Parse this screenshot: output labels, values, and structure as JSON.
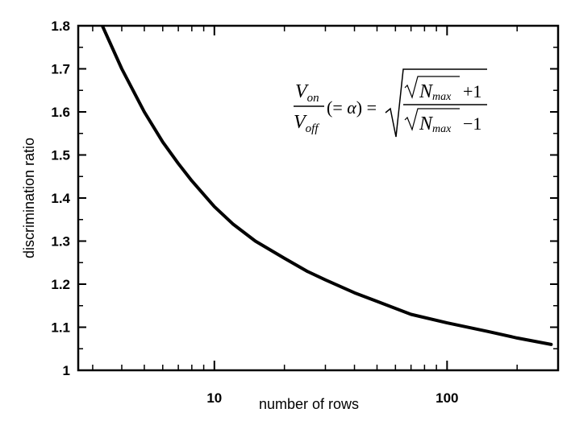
{
  "chart_data": {
    "type": "line",
    "title": "",
    "xlabel": "number of rows",
    "ylabel": "discrimination ratio",
    "x_scale": "log",
    "xlim": [
      2.6,
      300
    ],
    "ylim": [
      1.0,
      1.8
    ],
    "grid": false,
    "legend": "none",
    "y_ticks": [
      "1",
      "1.1",
      "1.2",
      "1.3",
      "1.4",
      "1.5",
      "1.6",
      "1.7",
      "1.8"
    ],
    "x_tick_labels": [
      "10",
      "100"
    ],
    "series": [
      {
        "color": "#000000",
        "formula": "sqrt((sqrt(N)+1)/(sqrt(N)-1))",
        "x": [
          3.3,
          4,
          5,
          6,
          7,
          8,
          10,
          12,
          15,
          20,
          25,
          30,
          40,
          50,
          70,
          100,
          150,
          200,
          280
        ],
        "y": [
          1.8,
          1.7,
          1.6,
          1.53,
          1.48,
          1.44,
          1.38,
          1.34,
          1.3,
          1.26,
          1.23,
          1.21,
          1.18,
          1.16,
          1.13,
          1.11,
          1.09,
          1.075,
          1.06
        ]
      }
    ],
    "annotation": {
      "lhs_num": "V",
      "lhs_num_sub": "on",
      "lhs_den": "V",
      "lhs_den_sub": "off",
      "alpha_open": "(= ",
      "alpha": "α",
      "alpha_close": ") = ",
      "N": "N",
      "max": "max",
      "plus_one": "+1",
      "minus_one": "−1"
    }
  }
}
